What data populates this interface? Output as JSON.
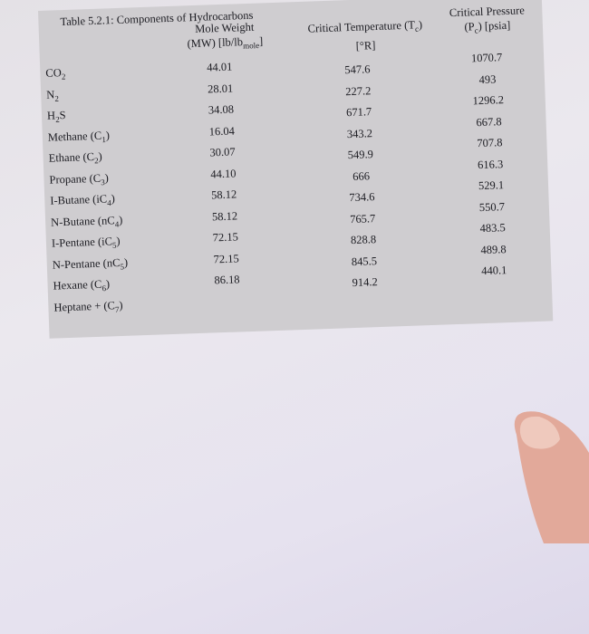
{
  "table": {
    "title": "Table 5.2.1: Components of Hydrocarbons",
    "columns": [
      [
        [
          {
            "text": "Mole Weight"
          }
        ],
        [
          {
            "text": "(MW) [lb/lb"
          },
          {
            "sub": "mole"
          },
          {
            "text": "]"
          }
        ]
      ],
      [
        [
          {
            "text": "Critical Temperature (T"
          },
          {
            "sub": "c"
          },
          {
            "text": ")"
          }
        ],
        [
          {
            "text": "[°R]"
          }
        ]
      ],
      [
        [
          {
            "text": "Critical Pressure"
          }
        ],
        [
          {
            "text": "(P"
          },
          {
            "sub": "c"
          },
          {
            "text": ") [psia]"
          }
        ]
      ]
    ],
    "rows": [
      {
        "component": [
          {
            "text": "CO"
          },
          {
            "sub": "2"
          }
        ],
        "mw": "44.01",
        "tc": "547.6",
        "pc": "1070.7"
      },
      {
        "component": [
          {
            "text": "N"
          },
          {
            "sub": "2"
          }
        ],
        "mw": "28.01",
        "tc": "227.2",
        "pc": "493"
      },
      {
        "component": [
          {
            "text": "H"
          },
          {
            "sub": "2"
          },
          {
            "text": "S"
          }
        ],
        "mw": "34.08",
        "tc": "671.7",
        "pc": "1296.2"
      },
      {
        "component": [
          {
            "text": "Methane (C"
          },
          {
            "sub": "1"
          },
          {
            "text": ")"
          }
        ],
        "mw": "16.04",
        "tc": "343.2",
        "pc": "667.8"
      },
      {
        "component": [
          {
            "text": "Ethane (C"
          },
          {
            "sub": "2"
          },
          {
            "text": ")"
          }
        ],
        "mw": "30.07",
        "tc": "549.9",
        "pc": "707.8"
      },
      {
        "component": [
          {
            "text": "Propane (C"
          },
          {
            "sub": "3"
          },
          {
            "text": ")"
          }
        ],
        "mw": "44.10",
        "tc": "666",
        "pc": "616.3"
      },
      {
        "component": [
          {
            "text": "I-Butane (iC"
          },
          {
            "sub": "4"
          },
          {
            "text": ")"
          }
        ],
        "mw": "58.12",
        "tc": "734.6",
        "pc": "529.1"
      },
      {
        "component": [
          {
            "text": "N-Butane (nC"
          },
          {
            "sub": "4"
          },
          {
            "text": ")"
          }
        ],
        "mw": "58.12",
        "tc": "765.7",
        "pc": "550.7"
      },
      {
        "component": [
          {
            "text": "I-Pentane (iC"
          },
          {
            "sub": "5"
          },
          {
            "text": ")"
          }
        ],
        "mw": "72.15",
        "tc": "828.8",
        "pc": "483.5"
      },
      {
        "component": [
          {
            "text": "N-Pentane (nC"
          },
          {
            "sub": "5"
          },
          {
            "text": ")"
          }
        ],
        "mw": "72.15",
        "tc": "845.5",
        "pc": "489.8"
      },
      {
        "component": [
          {
            "text": "Hexane (C"
          },
          {
            "sub": "6"
          },
          {
            "text": ")"
          }
        ],
        "mw": "86.18",
        "tc": "914.2",
        "pc": "440.1"
      },
      {
        "component": [
          {
            "text": "Heptane + (C"
          },
          {
            "sub": "7"
          },
          {
            "text": ")"
          }
        ],
        "mw": null,
        "tc": null,
        "pc": null
      }
    ]
  }
}
